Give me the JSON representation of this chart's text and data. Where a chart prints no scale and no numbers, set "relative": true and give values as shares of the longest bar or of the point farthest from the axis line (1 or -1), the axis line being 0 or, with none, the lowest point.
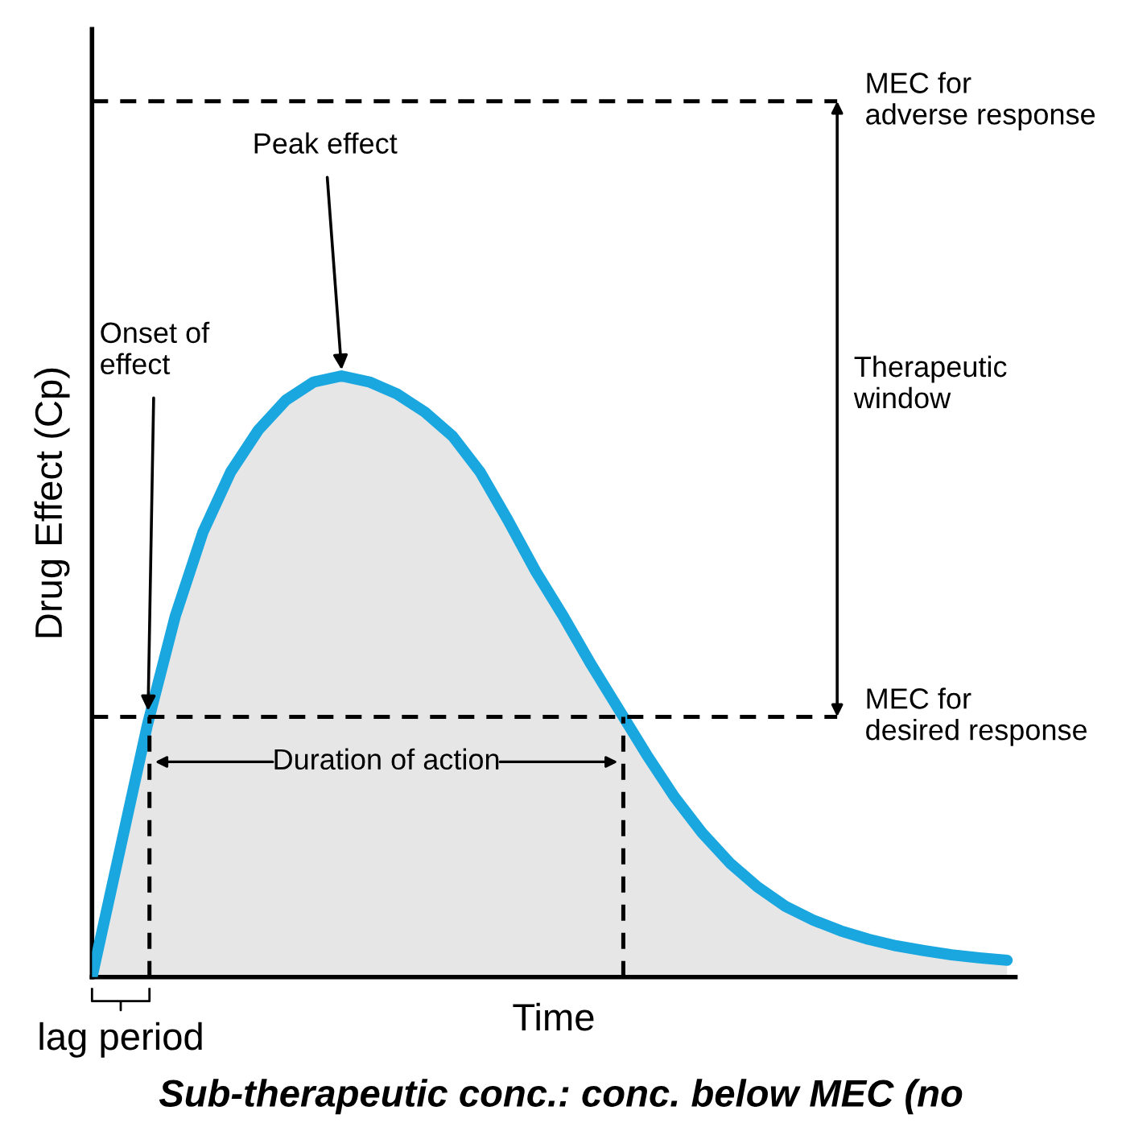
{
  "chart_data": {
    "type": "area",
    "relative": true,
    "ylabel": "Drug Effect (Cp)",
    "xlabel": "Time",
    "categories": [
      null,
      null,
      null,
      null,
      null,
      null,
      null,
      null,
      null,
      null,
      null,
      null,
      null,
      null,
      null,
      null,
      null,
      null,
      null,
      null,
      null,
      null,
      null,
      null,
      null,
      null,
      null,
      null,
      null,
      null,
      null,
      null,
      null,
      null
    ],
    "series": [
      {
        "color": "#1aa7e0",
        "values": [
          0,
          0.21,
          0.42,
          0.6,
          0.74,
          0.84,
          0.91,
          0.96,
          0.99,
          1,
          0.99,
          0.97,
          0.94,
          0.9,
          0.84,
          0.76,
          0.675,
          0.6,
          0.52,
          0.445,
          0.37,
          0.3,
          0.24,
          0.19,
          0.15,
          0.118,
          0.095,
          0.077,
          0.063,
          0.052,
          0.044,
          0.037,
          0.032,
          0.028
        ]
      }
    ],
    "ref_lines": [
      {
        "axis": "y",
        "value": 1.457,
        "label": "MEC for\nadverse response",
        "line_style": "dashed",
        "color": "#000000"
      },
      {
        "axis": "y",
        "value": 0.433,
        "label": "MEC for\ndesired response",
        "line_style": "dashed",
        "color": "#000000"
      }
    ],
    "annotations": [
      "Peak effect",
      "Onset of\neffect",
      "Duration of action",
      "Therapeutic\nwindow",
      "lag period",
      "Sub-therapeutic conc.: conc. below MEC (no"
    ]
  }
}
